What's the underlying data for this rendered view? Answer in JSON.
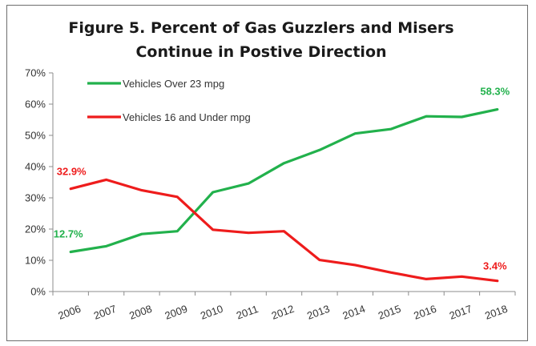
{
  "chart_data": {
    "type": "line",
    "title_lines": [
      "Figure 5. Percent of Gas Guzzlers and Misers",
      "Continue in Postive Direction"
    ],
    "xlabel": "",
    "ylabel": "",
    "categories": [
      "2006",
      "2007",
      "2008",
      "2009",
      "2010",
      "2011",
      "2012",
      "2013",
      "2014",
      "2015",
      "2016",
      "2017",
      "2018"
    ],
    "ylim": [
      0,
      70
    ],
    "yticks": [
      0,
      10,
      20,
      30,
      40,
      50,
      60,
      70
    ],
    "ytick_labels": [
      "0%",
      "10%",
      "20%",
      "30%",
      "40%",
      "50%",
      "60%",
      "70%"
    ],
    "grid": false,
    "legend_placement": "top-left",
    "series": [
      {
        "name": "Vehicles Over 23 mpg",
        "color": "#22b14c",
        "values": [
          12.7,
          14.5,
          18.4,
          19.3,
          31.8,
          34.6,
          41.1,
          45.3,
          50.6,
          52.0,
          56.1,
          55.9,
          58.3
        ],
        "labels": [
          {
            "index": 0,
            "text": "12.7%"
          },
          {
            "index": 12,
            "text": "58.3%"
          }
        ]
      },
      {
        "name": "Vehicles 16 and Under mpg",
        "color": "#ee1c1c",
        "values": [
          32.9,
          35.8,
          32.4,
          30.3,
          19.8,
          18.8,
          19.3,
          10.1,
          8.5,
          6.1,
          4.0,
          4.8,
          3.4
        ],
        "labels": [
          {
            "index": 0,
            "text": "32.9%"
          },
          {
            "index": 12,
            "text": "3.4%"
          }
        ]
      }
    ]
  }
}
